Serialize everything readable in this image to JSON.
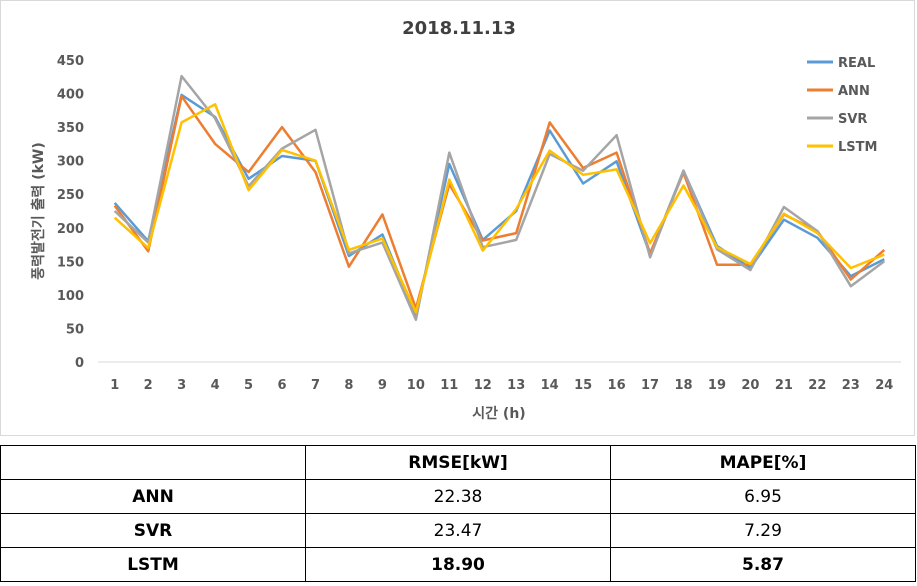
{
  "chart_data": {
    "type": "line",
    "title": "2018.11.13",
    "xlabel": "시간 (h)",
    "ylabel": "풍력발전기 출력 (kW)",
    "ylim": [
      0,
      450
    ],
    "yticks": [
      0,
      50,
      100,
      150,
      200,
      250,
      300,
      350,
      400,
      450
    ],
    "categories": [
      "1",
      "2",
      "3",
      "4",
      "5",
      "6",
      "7",
      "8",
      "9",
      "10",
      "11",
      "12",
      "13",
      "14",
      "15",
      "16",
      "17",
      "18",
      "19",
      "20",
      "21",
      "22",
      "23",
      "24"
    ],
    "grid": false,
    "legend": "top-right",
    "series": [
      {
        "name": "REAL",
        "color": "#5b9bd5",
        "values": [
          237,
          180,
          398,
          365,
          273,
          307,
          300,
          158,
          190,
          68,
          295,
          182,
          225,
          345,
          266,
          299,
          160,
          285,
          173,
          140,
          212,
          185,
          128,
          153
        ]
      },
      {
        "name": "ANN",
        "color": "#ed7d31",
        "values": [
          233,
          165,
          396,
          325,
          283,
          350,
          283,
          142,
          220,
          80,
          265,
          181,
          192,
          357,
          289,
          312,
          162,
          282,
          145,
          145,
          220,
          195,
          123,
          167
        ]
      },
      {
        "name": "SVR",
        "color": "#a5a5a5",
        "values": [
          225,
          178,
          426,
          363,
          262,
          318,
          346,
          162,
          178,
          63,
          312,
          171,
          182,
          310,
          285,
          338,
          156,
          285,
          168,
          137,
          231,
          195,
          113,
          150
        ]
      },
      {
        "name": "LSTM",
        "color": "#ffc000",
        "values": [
          215,
          170,
          357,
          384,
          256,
          316,
          300,
          167,
          184,
          74,
          272,
          166,
          228,
          315,
          279,
          287,
          177,
          263,
          171,
          146,
          221,
          192,
          140,
          160
        ]
      }
    ]
  },
  "table": {
    "headers": [
      "",
      "RMSE[kW]",
      "MAPE[%]"
    ],
    "rows": [
      {
        "model": "ANN",
        "rmse": "22.38",
        "mape": "6.95"
      },
      {
        "model": "SVR",
        "rmse": "23.47",
        "mape": "7.29"
      },
      {
        "model": "LSTM",
        "rmse": "18.90",
        "mape": "5.87"
      }
    ]
  }
}
